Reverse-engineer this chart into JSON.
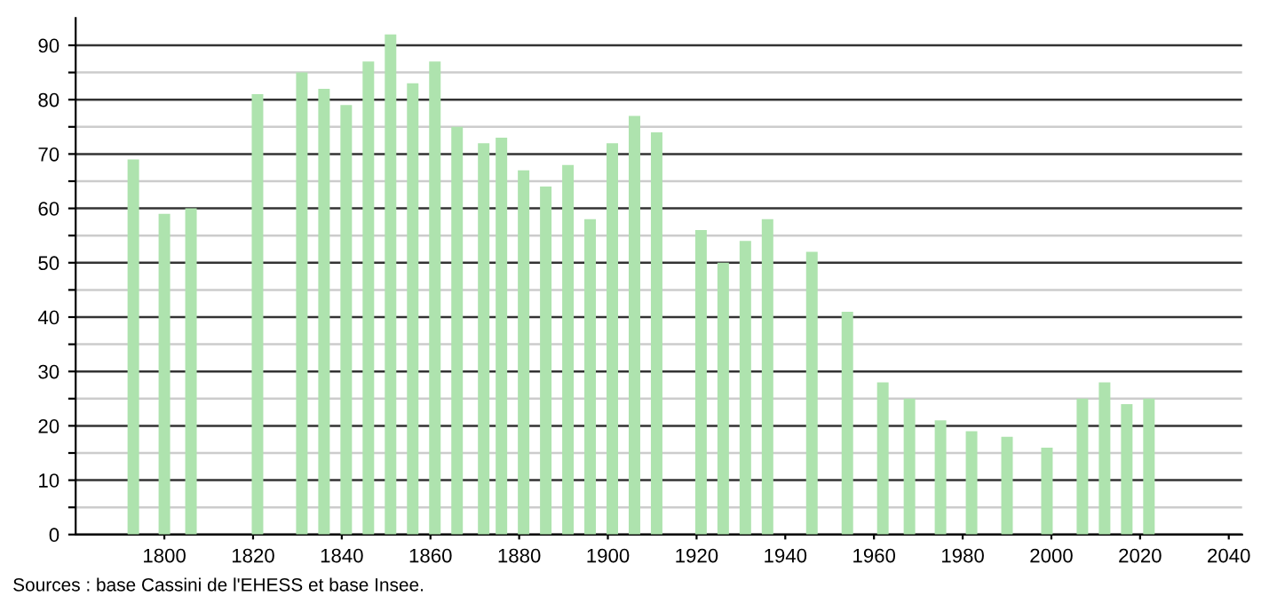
{
  "chart_data": {
    "type": "bar",
    "x": [
      1793,
      1800,
      1806,
      1821,
      1831,
      1836,
      1841,
      1846,
      1851,
      1856,
      1861,
      1866,
      1872,
      1876,
      1881,
      1886,
      1891,
      1896,
      1901,
      1906,
      1911,
      1921,
      1926,
      1931,
      1936,
      1946,
      1954,
      1962,
      1968,
      1975,
      1982,
      1990,
      1999,
      2007,
      2012,
      2017,
      2022
    ],
    "values": [
      69,
      59,
      60,
      81,
      85,
      82,
      79,
      87,
      92,
      83,
      87,
      75,
      72,
      73,
      67,
      64,
      68,
      58,
      72,
      77,
      74,
      56,
      50,
      54,
      58,
      52,
      41,
      28,
      25,
      21,
      19,
      18,
      16,
      25,
      28,
      24,
      25
    ],
    "color": "#aee3ae",
    "xlim": [
      1780,
      2043
    ],
    "xticks": [
      1800,
      1820,
      1840,
      1860,
      1880,
      1900,
      1920,
      1940,
      1960,
      1980,
      2000,
      2020,
      2040
    ],
    "ylim": [
      0,
      95
    ],
    "yticks": [
      0,
      {
        "value": 5,
        "label": null
      },
      10,
      {
        "value": 15,
        "label": null
      },
      20,
      {
        "value": 25,
        "label": null
      },
      30,
      {
        "value": 35,
        "label": null
      },
      40,
      {
        "value": 45,
        "label": null
      },
      50,
      {
        "value": 55,
        "label": null
      },
      60,
      {
        "value": 65,
        "label": null
      },
      70,
      {
        "value": 75,
        "label": null
      },
      80,
      {
        "value": 85,
        "label": null
      },
      90
    ],
    "grid": "y",
    "annotations": [
      "Sources : base Cassini de l'EHESS et base Insee."
    ]
  }
}
